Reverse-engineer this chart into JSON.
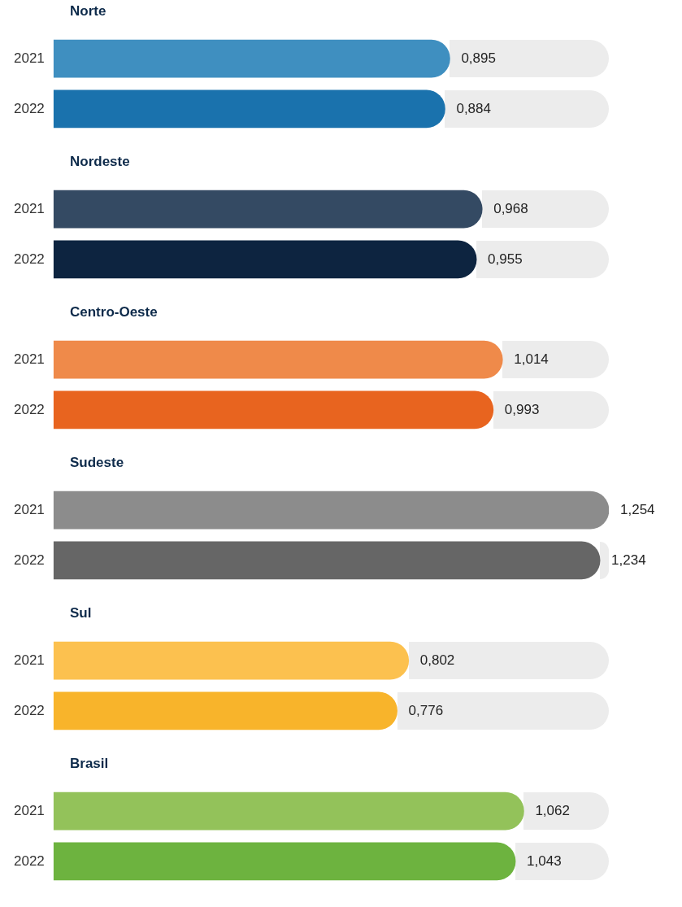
{
  "chart_data": [
    {
      "type": "bar",
      "orientation": "horizontal",
      "title": "Norte",
      "categories": [
        "2021",
        "2022"
      ],
      "values": [
        0.895,
        0.884
      ],
      "value_labels": [
        "0,895",
        "0,884"
      ],
      "colors": [
        "#3f8fc0",
        "#1a72ad"
      ],
      "tick_labels": "y"
    },
    {
      "type": "bar",
      "orientation": "horizontal",
      "title": "Nordeste",
      "categories": [
        "2021",
        "2022"
      ],
      "values": [
        0.968,
        0.955
      ],
      "value_labels": [
        "0,968",
        "0,955"
      ],
      "colors": [
        "#344a63",
        "#0d2440"
      ],
      "tick_labels": "y"
    },
    {
      "type": "bar",
      "orientation": "horizontal",
      "title": "Centro-Oeste",
      "categories": [
        "2021",
        "2022"
      ],
      "values": [
        1.014,
        0.993
      ],
      "value_labels": [
        "1,014",
        "0,993"
      ],
      "colors": [
        "#ef8a4a",
        "#e8641f"
      ],
      "tick_labels": "y"
    },
    {
      "type": "bar",
      "orientation": "horizontal",
      "title": "Sudeste",
      "categories": [
        "2021",
        "2022"
      ],
      "values": [
        1.254,
        1.234
      ],
      "value_labels": [
        "1,254",
        "1,234"
      ],
      "colors": [
        "#8c8c8c",
        "#666666"
      ],
      "tick_labels": "y"
    },
    {
      "type": "bar",
      "orientation": "horizontal",
      "title": "Sul",
      "categories": [
        "2021",
        "2022"
      ],
      "values": [
        0.802,
        0.776
      ],
      "value_labels": [
        "0,802",
        "0,776"
      ],
      "colors": [
        "#fcc14f",
        "#f8b42b"
      ],
      "tick_labels": "y"
    },
    {
      "type": "bar",
      "orientation": "horizontal",
      "title": "Brasil",
      "categories": [
        "2021",
        "2022"
      ],
      "values": [
        1.062,
        1.043
      ],
      "value_labels": [
        "1,062",
        "1,043"
      ],
      "colors": [
        "#93c25a",
        "#6db33f"
      ],
      "tick_labels": "y"
    }
  ]
}
